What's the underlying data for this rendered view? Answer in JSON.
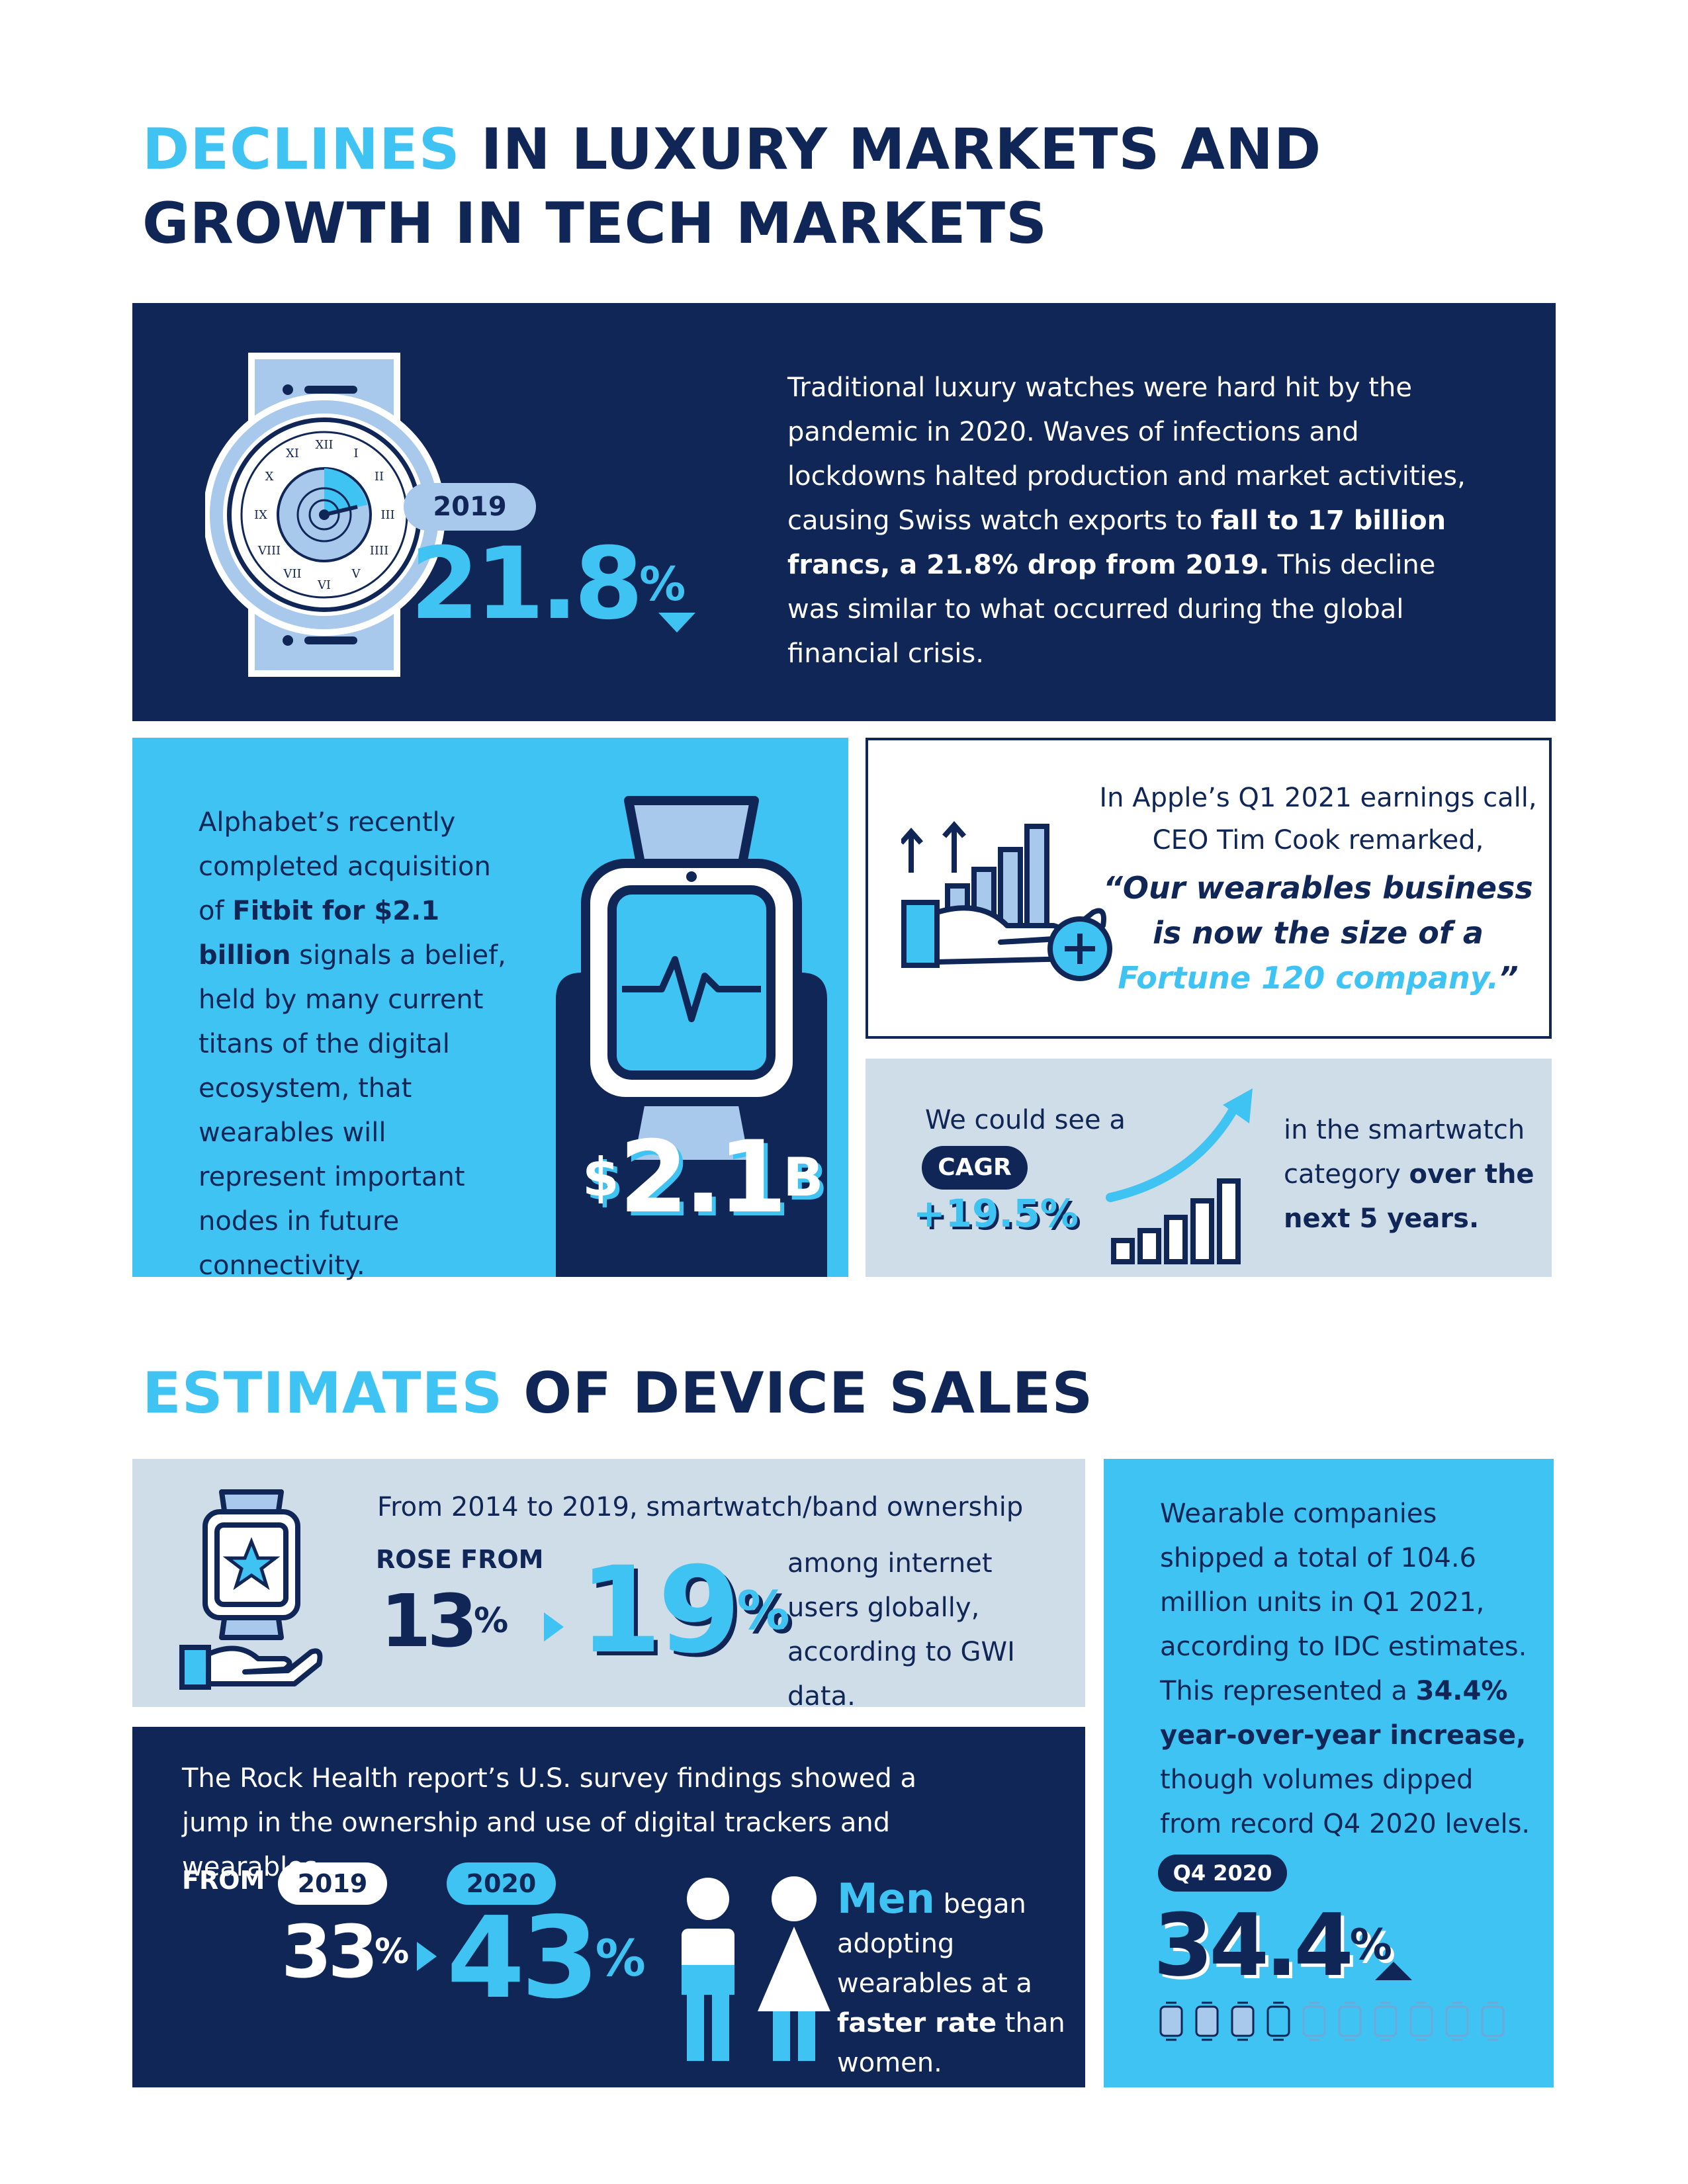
{
  "section1": {
    "heading_highlight": "DECLINES",
    "heading_rest_line1": " IN LUXURY MARKETS AND",
    "heading_line2": "GROWTH IN TECH MARKETS"
  },
  "luxury_panel": {
    "year_badge": "2019",
    "stat_number": "21.8",
    "stat_unit": "%",
    "text_part1": "Traditional luxury watches were hard hit by the pandemic in 2020. Waves of infections and lockdowns halted production and market activities, causing Swiss watch exports to ",
    "text_bold": "fall to 17 billion francs, a 21.8% drop from 2019.",
    "text_part2": " This decline was similar to what occurred during the global financial crisis.",
    "watch_numerals": [
      "XII",
      "I",
      "II",
      "III",
      "IIII",
      "V",
      "VI",
      "VII",
      "VIII",
      "IX",
      "X",
      "XI"
    ]
  },
  "fitbit_panel": {
    "text_part1": "Alphabet’s recently completed acquisition of ",
    "text_bold": "Fitbit for $2.1 billion",
    "text_part2": " signals a belief, held by many current titans of the digital ecosystem, that wearables will represent important nodes in future connectivity.",
    "stat_currency": "$",
    "stat_number": "2.1",
    "stat_suffix": "B"
  },
  "apple_panel": {
    "line1": "In Apple’s Q1 2021 earnings call,",
    "line2": "CEO Tim Cook remarked,",
    "quote_line1": "“Our wearables business",
    "quote_line2": "is now the size of a",
    "quote_highlight": "Fortune 120 company.",
    "quote_end": "”"
  },
  "cagr_panel": {
    "lead": "We could see a",
    "badge": "CAGR",
    "value": "+19.5%",
    "tail_part1": "in the smartwatch category ",
    "tail_bold": "over the next 5 years."
  },
  "section2": {
    "heading_highlight": "ESTIMATES",
    "heading_rest": " OF DEVICE SALES"
  },
  "ownership_panel": {
    "intro": "From 2014 to 2019, smartwatch/band ownership",
    "rose_label": "ROSE FROM",
    "from_number": "13",
    "from_unit": "%",
    "to_number": "19",
    "to_unit": "%",
    "tail": "among internet users globally, according to GWI data."
  },
  "rock_panel": {
    "intro": "The Rock Health report’s U.S. survey findings showed a jump in the ownership and use of digital trackers and wearables,",
    "from_label": "FROM",
    "year_from": "2019",
    "year_to": "2020",
    "from_number": "33",
    "from_unit": "%",
    "to_number": "43",
    "to_unit": "%",
    "men_word": "Men",
    "men_part1": " began adopting wearables at a ",
    "men_bold": "faster rate",
    "men_part2": " than women."
  },
  "shipped_panel": {
    "text_part1": "Wearable companies shipped a total of 104.6 million units in Q1 2021, according to IDC estimates. This represented a ",
    "text_bold": "34.4% year-over-year increase,",
    "text_part2": " though volumes dipped from record Q4 2020 levels.",
    "badge": "Q4 2020",
    "stat_number": "34.4",
    "stat_unit": "%"
  },
  "colors": {
    "navy": "#0f2656",
    "cyan": "#3ec3f2",
    "light_blue": "#a8c8ec",
    "pale_gray_blue": "#cfdde8",
    "white": "#ffffff"
  }
}
